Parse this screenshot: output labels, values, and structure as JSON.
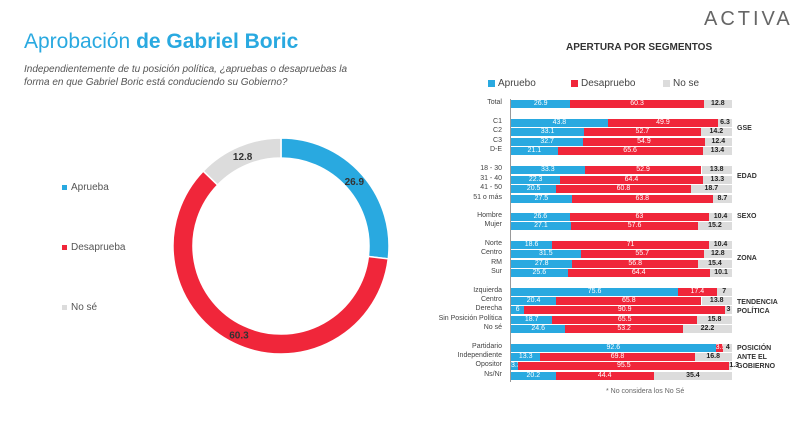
{
  "header": {
    "title_prefix": "Aprobación ",
    "title_bold": "de Gabriel Boric",
    "subtitle": "Independientemente de tu posición política, ¿apruebas o desapruebas la forma en que Gabriel Boric está conduciendo su Gobierno?",
    "logo": "ACTIVA"
  },
  "chart_data": [
    {
      "type": "pie",
      "variant": "donut",
      "labels": [
        "Aprueba",
        "Desaprueba",
        "No sé"
      ],
      "values": [
        26.9,
        60.3,
        12.8
      ],
      "colors": [
        "#29a9e0",
        "#f0263a",
        "#dcdcdc"
      ],
      "legend": "left"
    },
    {
      "type": "bar",
      "orientation": "horizontal",
      "stacked": true,
      "title": "APERTURA POR SEGMENTOS",
      "legend_position": "top",
      "series": [
        {
          "name": "Apruebo",
          "color": "#29a9e0"
        },
        {
          "name": "Desapruebo",
          "color": "#f0263a"
        },
        {
          "name": "No se",
          "color": "#dcdcdc"
        }
      ],
      "groups": [
        {
          "label": "",
          "rows": [
            {
              "label": "Total",
              "values": [
                26.9,
                60.3,
                12.8
              ]
            }
          ]
        },
        {
          "label": "GSE",
          "rows": [
            {
              "label": "C1",
              "values": [
                43.8,
                49.9,
                6.3
              ]
            },
            {
              "label": "C2",
              "values": [
                33.1,
                52.7,
                14.2
              ]
            },
            {
              "label": "C3",
              "values": [
                32.7,
                54.9,
                12.4
              ]
            },
            {
              "label": "D-E",
              "values": [
                21.1,
                65.6,
                13.4
              ]
            }
          ]
        },
        {
          "label": "EDAD",
          "rows": [
            {
              "label": "18 - 30",
              "values": [
                33.3,
                52.9,
                13.8
              ]
            },
            {
              "label": "31 - 40",
              "values": [
                22.3,
                64.4,
                13.3
              ]
            },
            {
              "label": "41 - 50",
              "values": [
                20.5,
                60.8,
                18.7
              ]
            },
            {
              "label": "51 o más",
              "values": [
                27.5,
                63.8,
                8.7
              ]
            }
          ]
        },
        {
          "label": "SEXO",
          "rows": [
            {
              "label": "Hombre",
              "values": [
                26.6,
                63,
                10.4
              ]
            },
            {
              "label": "Mujer",
              "values": [
                27.1,
                57.6,
                15.2
              ]
            }
          ]
        },
        {
          "label": "ZONA",
          "rows": [
            {
              "label": "Norte",
              "values": [
                18.6,
                71,
                10.4
              ]
            },
            {
              "label": "Centro",
              "values": [
                31.5,
                55.7,
                12.8
              ]
            },
            {
              "label": "RM",
              "values": [
                27.8,
                56.8,
                15.4
              ]
            },
            {
              "label": "Sur",
              "values": [
                25.6,
                64.4,
                10.1
              ]
            }
          ]
        },
        {
          "label": "TENDENCIA POLÍTICA",
          "rows": [
            {
              "label": "Izquierda",
              "values": [
                75.6,
                17.4,
                7
              ]
            },
            {
              "label": "Centro",
              "values": [
                20.4,
                65.8,
                13.8
              ]
            },
            {
              "label": "Derecha",
              "values": [
                6,
                90.9,
                3
              ]
            },
            {
              "label": "Sin Posición Política",
              "values": [
                18.7,
                65.5,
                15.8
              ]
            },
            {
              "label": "No sé",
              "values": [
                24.6,
                53.2,
                22.2
              ]
            }
          ]
        },
        {
          "label": "POSICIÓN ANTE EL GOBIERNO",
          "rows": [
            {
              "label": "Partidario",
              "values": [
                92.6,
                3.5,
                4
              ]
            },
            {
              "label": "Independiente",
              "values": [
                13.3,
                69.8,
                16.8
              ]
            },
            {
              "label": "Opositor",
              "values": [
                3.3,
                95.5,
                1.3
              ]
            },
            {
              "label": "Ns/Nr",
              "values": [
                20.2,
                44.4,
                35.4
              ]
            }
          ]
        }
      ],
      "note": "* No considera los No Sé"
    }
  ]
}
